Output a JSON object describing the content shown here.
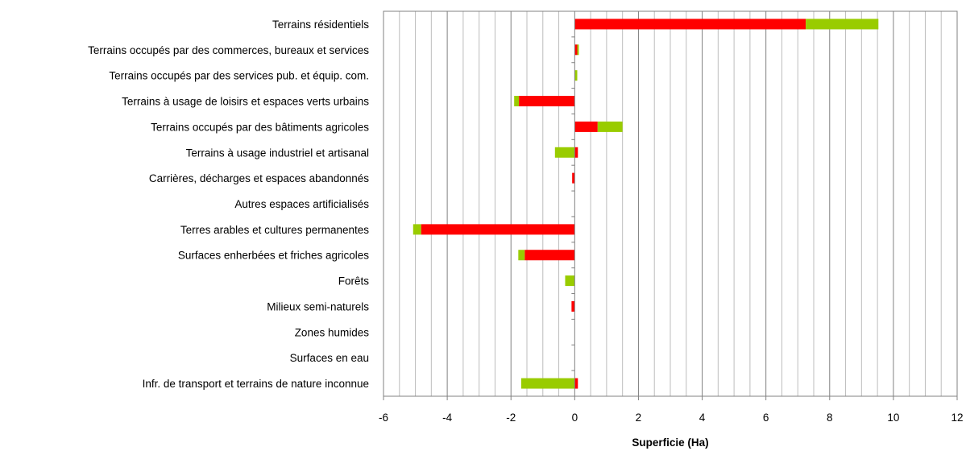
{
  "chart_data": {
    "type": "bar",
    "orientation": "horizontal",
    "stacked": true,
    "xlabel": "Superficie (Ha)",
    "xlim": [
      -6,
      12
    ],
    "xtick_step": 2,
    "minor_gridline_step": 0.5,
    "grid": true,
    "categories": [
      "Terrains résidentiels",
      "Terrains occupés par des commerces, bureaux et services",
      "Terrains occupés par des services pub. et équip. com.",
      "Terrains à usage de loisirs et espaces verts urbains",
      "Terrains occupés par des bâtiments agricoles",
      "Terrains à usage industriel et artisanal",
      "Carrières, décharges et espaces abandonnés",
      "Autres espaces artificialisés",
      "Terres arables et cultures permanentes",
      "Surfaces enherbées et friches agricoles",
      "Forêts",
      "Milieux semi-naturels",
      "Zones humides",
      "Surfaces en eau",
      "Infr. de transport et terrains de nature inconnue"
    ],
    "series": [
      {
        "color": "#ff0000",
        "values": [
          7.25,
          0.08,
          0,
          -1.75,
          0.72,
          0.1,
          -0.08,
          0,
          -4.82,
          -1.57,
          0,
          -0.1,
          0,
          0,
          0.1
        ]
      },
      {
        "color": "#99cc00",
        "values": [
          2.28,
          0.05,
          0.08,
          -0.15,
          0.78,
          -0.62,
          0,
          0,
          -0.25,
          -0.2,
          -0.3,
          0,
          0,
          0,
          -1.68
        ]
      }
    ]
  }
}
